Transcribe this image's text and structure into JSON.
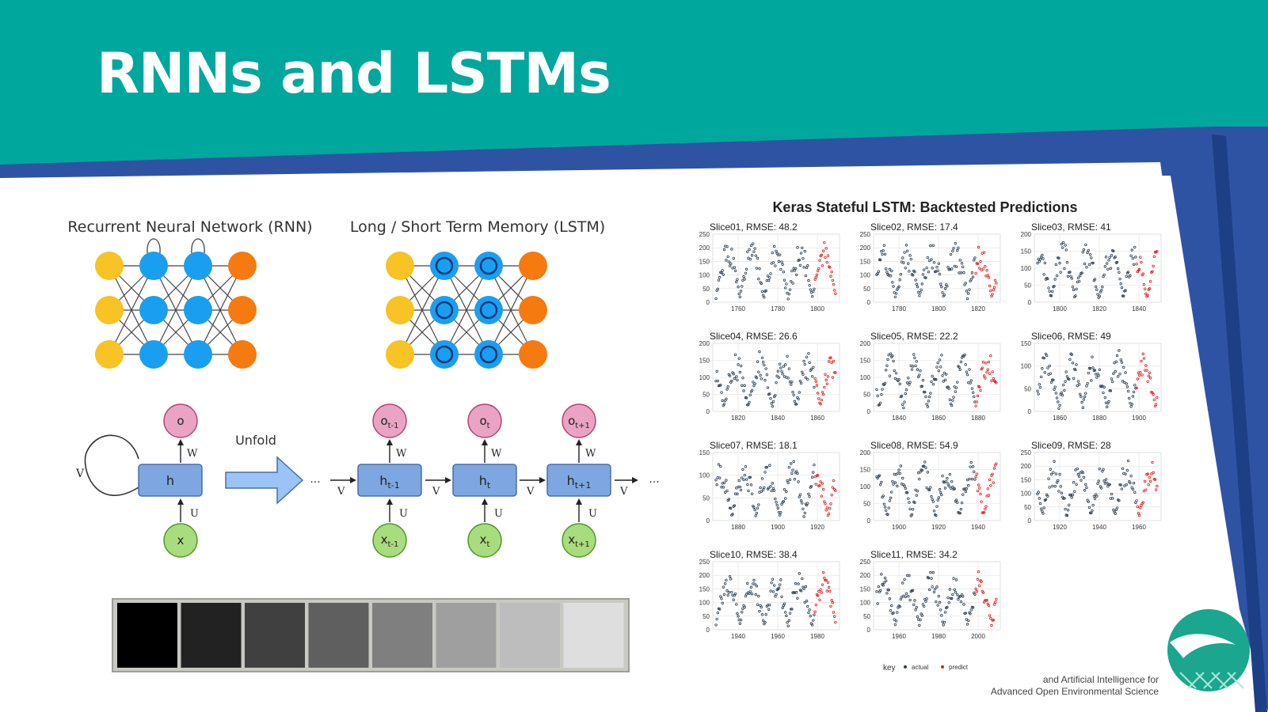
{
  "slide": {
    "title": "RNNs and LSTMs",
    "colors": {
      "teal": "#00a79d",
      "blue": "#2f53a3",
      "lightblue": "#00b4d8"
    }
  },
  "network_diagrams": {
    "rnn_label": "Recurrent Neural Network (RNN)",
    "lstm_label": "Long / Short Term Memory (LSTM)",
    "colors": {
      "input": "#f7c325",
      "hidden": "#1a9ef0",
      "output": "#f57a10"
    }
  },
  "unfold_diagram": {
    "unfold_label": "Unfold",
    "ellipsis": "...",
    "folded": {
      "output": "o",
      "hidden": "h",
      "input": "x",
      "w": "W",
      "u": "U",
      "v": "V"
    },
    "steps": [
      {
        "output": "o",
        "output_sub": "t-1",
        "hidden": "h",
        "hidden_sub": "t-1",
        "input": "x",
        "input_sub": "t-1",
        "w": "W",
        "u": "U",
        "v": "V"
      },
      {
        "output": "o",
        "output_sub": "t",
        "hidden": "h",
        "hidden_sub": "t",
        "input": "x",
        "input_sub": "t",
        "w": "W",
        "u": "U",
        "v": "V"
      },
      {
        "output": "o",
        "output_sub": "t+1",
        "hidden": "h",
        "hidden_sub": "t+1",
        "input": "x",
        "input_sub": "t+1",
        "w": "W",
        "u": "U",
        "v": "V"
      }
    ]
  },
  "grayscale_swatches": [
    "#000000",
    "#222222",
    "#404040",
    "#5f5f5f",
    "#7f7f7f",
    "#9f9f9f",
    "#bdbdbd",
    "#dedede"
  ],
  "chart_data": {
    "type": "scatter",
    "title": "Keras Stateful LSTM: Backtested Predictions",
    "legend": {
      "label": "key",
      "entries": [
        "actual",
        "predict"
      ],
      "colors": [
        "#2c3e50",
        "#e31a1c"
      ],
      "position": "bottom"
    },
    "panels": [
      {
        "title": "Slice01, RMSE: 48.2",
        "yticks": [
          0,
          50,
          100,
          150,
          200,
          250
        ],
        "xticks": [
          "1760",
          "1780",
          "1800"
        ]
      },
      {
        "title": "Slice02, RMSE: 17.4",
        "yticks": [
          0,
          50,
          100,
          150,
          200,
          250
        ],
        "xticks": [
          "1780",
          "1800",
          "1820"
        ]
      },
      {
        "title": "Slice03, RMSE: 41",
        "yticks": [
          0,
          50,
          100,
          150,
          200
        ],
        "xticks": [
          "1800",
          "1820",
          "1840"
        ]
      },
      {
        "title": "Slice04, RMSE: 26.6",
        "yticks": [
          0,
          50,
          100,
          150,
          200
        ],
        "xticks": [
          "1820",
          "1840",
          "1860"
        ]
      },
      {
        "title": "Slice05, RMSE: 22.2",
        "yticks": [
          0,
          50,
          100,
          150,
          200
        ],
        "xticks": [
          "1840",
          "1860",
          "1880"
        ]
      },
      {
        "title": "Slice06, RMSE: 49",
        "yticks": [
          0,
          50,
          100,
          150
        ],
        "xticks": [
          "1860",
          "1880",
          "1900"
        ]
      },
      {
        "title": "Slice07, RMSE: 18.1",
        "yticks": [
          0,
          50,
          100,
          150
        ],
        "xticks": [
          "1880",
          "1900",
          "1920"
        ]
      },
      {
        "title": "Slice08, RMSE: 54.9",
        "yticks": [
          0,
          50,
          100,
          150,
          200
        ],
        "xticks": [
          "1900",
          "1920",
          "1940"
        ]
      },
      {
        "title": "Slice09, RMSE: 28",
        "yticks": [
          0,
          50,
          100,
          150,
          200,
          250
        ],
        "xticks": [
          "1920",
          "1940",
          "1960"
        ]
      },
      {
        "title": "Slice10, RMSE: 38.4",
        "yticks": [
          0,
          50,
          100,
          150,
          200,
          250
        ],
        "xticks": [
          "1940",
          "1960",
          "1980"
        ]
      },
      {
        "title": "Slice11, RMSE: 34.2",
        "yticks": [
          0,
          50,
          100,
          150,
          200,
          250
        ],
        "xticks": [
          "1960",
          "1980",
          "2000"
        ]
      }
    ]
  },
  "footer": {
    "line1": "and Artificial Intelligence for",
    "line2": "Advanced Open Environmental Science"
  }
}
